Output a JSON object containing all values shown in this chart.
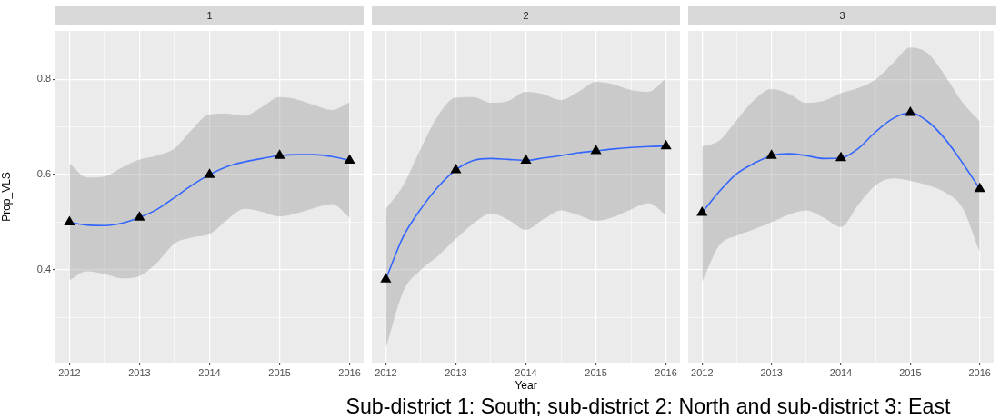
{
  "chart_data": [
    {
      "type": "line",
      "title": "1",
      "ylabel": "Prop_VLS",
      "xlim": [
        2011.8,
        2016.2
      ],
      "xticks": [
        2012,
        {
          "value": 2012.5,
          "label": null
        },
        2013,
        {
          "value": 2013.5,
          "label": null
        },
        2014,
        {
          "value": 2014.5,
          "label": null
        },
        2015,
        {
          "value": 2015.5,
          "label": null
        },
        2016
      ],
      "ylim": [
        0.205,
        0.902
      ],
      "yticks": [
        {
          "value": 0.3,
          "label": null
        },
        0.4,
        {
          "value": 0.5,
          "label": null
        },
        0.6,
        {
          "value": 0.7,
          "label": null
        },
        0.8
      ],
      "grid": true,
      "series": [
        {
          "color": "#3366ff",
          "x": [
            2012,
            2012.25,
            2012.5,
            2012.75,
            2013,
            2013.25,
            2013.5,
            2013.75,
            2014,
            2014.25,
            2014.5,
            2014.75,
            2015,
            2015.25,
            2015.5,
            2015.75,
            2016
          ],
          "values": [
            0.5,
            0.494,
            0.493,
            0.498,
            0.51,
            0.527,
            0.552,
            0.578,
            0.6,
            0.617,
            0.627,
            0.634,
            0.64,
            0.642,
            0.642,
            0.638,
            0.63
          ],
          "lower": [
            0.378,
            0.397,
            0.391,
            0.382,
            0.387,
            0.415,
            0.455,
            0.468,
            0.475,
            0.505,
            0.528,
            0.522,
            0.512,
            0.519,
            0.53,
            0.538,
            0.509
          ],
          "upper": [
            0.624,
            0.594,
            0.596,
            0.615,
            0.632,
            0.64,
            0.655,
            0.695,
            0.727,
            0.728,
            0.724,
            0.742,
            0.763,
            0.758,
            0.746,
            0.736,
            0.752
          ]
        },
        {
          "type": "scatter",
          "color": "#000000",
          "marker": "triangle",
          "x": [
            2012,
            2013,
            2014,
            2015,
            2016
          ],
          "values": [
            0.5,
            0.51,
            0.6,
            0.64,
            0.63
          ]
        }
      ]
    },
    {
      "type": "line",
      "title": "2",
      "xlabel": "Year",
      "annotations": [
        "Sub-district 1: South; sub-district 2: North and sub-district 3: East"
      ],
      "xlim": [
        2011.8,
        2016.2
      ],
      "xticks": [
        2012,
        {
          "value": 2012.5,
          "label": null
        },
        2013,
        {
          "value": 2013.5,
          "label": null
        },
        2014,
        {
          "value": 2014.5,
          "label": null
        },
        2015,
        {
          "value": 2015.5,
          "label": null
        },
        2016
      ],
      "ylim": [
        0.205,
        0.902
      ],
      "yticks": [
        {
          "value": 0.3,
          "label": null
        },
        0.4,
        {
          "value": 0.5,
          "label": null
        },
        0.6,
        {
          "value": 0.7,
          "label": null
        },
        0.8
      ],
      "grid": true,
      "tick_labels": "x",
      "series": [
        {
          "color": "#3366ff",
          "x": [
            2012,
            2012.25,
            2012.5,
            2012.75,
            2013,
            2013.25,
            2013.5,
            2013.75,
            2014,
            2014.25,
            2014.5,
            2014.75,
            2015,
            2015.25,
            2015.5,
            2015.75,
            2016
          ],
          "values": [
            0.38,
            0.47,
            0.528,
            0.575,
            0.61,
            0.63,
            0.634,
            0.632,
            0.63,
            0.635,
            0.64,
            0.646,
            0.65,
            0.654,
            0.657,
            0.659,
            0.66
          ],
          "lower": [
            0.235,
            0.355,
            0.4,
            0.43,
            0.465,
            0.497,
            0.518,
            0.505,
            0.484,
            0.506,
            0.525,
            0.515,
            0.503,
            0.511,
            0.527,
            0.54,
            0.515
          ],
          "upper": [
            0.528,
            0.578,
            0.655,
            0.725,
            0.762,
            0.763,
            0.751,
            0.755,
            0.774,
            0.769,
            0.757,
            0.774,
            0.795,
            0.79,
            0.778,
            0.774,
            0.802
          ]
        },
        {
          "type": "scatter",
          "color": "#000000",
          "marker": "triangle",
          "x": [
            2012,
            2013,
            2014,
            2015,
            2016
          ],
          "values": [
            0.38,
            0.61,
            0.63,
            0.65,
            0.66
          ]
        }
      ]
    },
    {
      "type": "line",
      "title": "3",
      "xlim": [
        2011.8,
        2016.2
      ],
      "xticks": [
        2012,
        {
          "value": 2012.5,
          "label": null
        },
        2013,
        {
          "value": 2013.5,
          "label": null
        },
        2014,
        {
          "value": 2014.5,
          "label": null
        },
        2015,
        {
          "value": 2015.5,
          "label": null
        },
        2016
      ],
      "ylim": [
        0.205,
        0.902
      ],
      "yticks": [
        {
          "value": 0.3,
          "label": null
        },
        0.4,
        {
          "value": 0.5,
          "label": null
        },
        0.6,
        {
          "value": 0.7,
          "label": null
        },
        0.8
      ],
      "grid": true,
      "tick_labels": "x",
      "series": [
        {
          "color": "#3366ff",
          "x": [
            2012,
            2012.25,
            2012.5,
            2012.75,
            2013,
            2013.25,
            2013.5,
            2013.75,
            2014,
            2014.25,
            2014.5,
            2014.75,
            2015,
            2015.25,
            2015.5,
            2015.75,
            2016
          ],
          "values": [
            0.52,
            0.565,
            0.602,
            0.624,
            0.64,
            0.644,
            0.64,
            0.634,
            0.635,
            0.655,
            0.69,
            0.718,
            0.73,
            0.712,
            0.675,
            0.625,
            0.57
          ],
          "lower": [
            0.375,
            0.452,
            0.472,
            0.485,
            0.5,
            0.516,
            0.525,
            0.51,
            0.49,
            0.537,
            0.578,
            0.592,
            0.587,
            0.578,
            0.563,
            0.53,
            0.437
          ],
          "upper": [
            0.659,
            0.672,
            0.715,
            0.757,
            0.78,
            0.77,
            0.751,
            0.755,
            0.771,
            0.782,
            0.8,
            0.834,
            0.867,
            0.855,
            0.808,
            0.752,
            0.712
          ]
        },
        {
          "type": "scatter",
          "color": "#000000",
          "marker": "triangle",
          "x": [
            2012,
            2013,
            2014,
            2015,
            2016
          ],
          "values": [
            0.52,
            0.64,
            0.635,
            0.73,
            0.57
          ]
        }
      ]
    }
  ]
}
